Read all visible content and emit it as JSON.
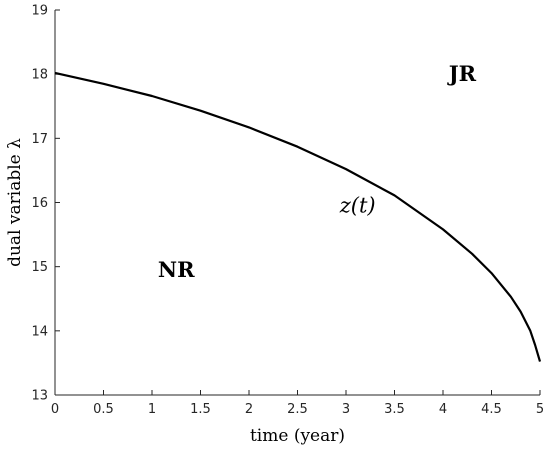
{
  "chart_data": {
    "type": "line",
    "title": "",
    "xlabel": "time (year)",
    "ylabel": "dual variable λ",
    "xlim": [
      0,
      5
    ],
    "ylim": [
      13,
      19
    ],
    "xticks": [
      0,
      0.5,
      1,
      1.5,
      2,
      2.5,
      3,
      3.5,
      4,
      4.5,
      5
    ],
    "xtick_labels": [
      "0",
      "0.5",
      "1",
      "1.5",
      "2",
      "2.5",
      "3",
      "3.5",
      "4",
      "4.5",
      "5"
    ],
    "yticks": [
      13,
      14,
      15,
      16,
      17,
      18,
      19
    ],
    "ytick_labels": [
      "13",
      "14",
      "15",
      "16",
      "17",
      "18",
      "19"
    ],
    "grid": false,
    "series": [
      {
        "label": "z(t)",
        "color": "#000000",
        "x": [
          0,
          0.5,
          1,
          1.5,
          2,
          2.5,
          3,
          3.5,
          4,
          4.3,
          4.5,
          4.7,
          4.8,
          4.9,
          4.95,
          4.98,
          5
        ],
        "y": [
          18.02,
          17.85,
          17.66,
          17.43,
          17.17,
          16.87,
          16.52,
          16.11,
          15.58,
          15.2,
          14.9,
          14.53,
          14.3,
          14.0,
          13.78,
          13.62,
          13.52
        ]
      }
    ],
    "annotations": [
      {
        "text": "JR",
        "x": 4.2,
        "y": 18.0
      },
      {
        "text": "NR",
        "x": 1.25,
        "y": 14.95
      },
      {
        "text": "z(t)",
        "x": 3.12,
        "y": 15.95
      }
    ]
  }
}
